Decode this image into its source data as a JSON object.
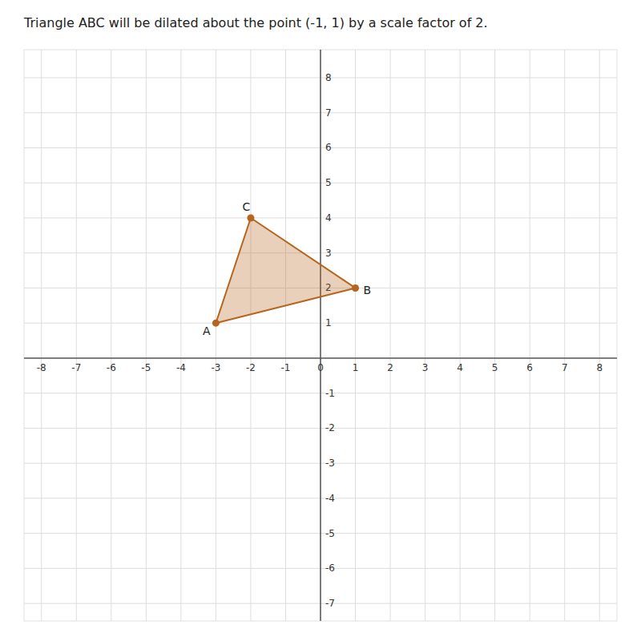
{
  "chart_data": {
    "type": "polygon",
    "title": "Triangle ABC will be dilated about the point (-1, 1) by a scale factor of 2.",
    "x": [
      -3,
      1,
      -2
    ],
    "values": [
      1,
      2,
      4
    ],
    "point_labels": [
      "A",
      "B",
      "C"
    ],
    "color": "#b5651d",
    "xlim": [
      -8.5,
      8.5
    ],
    "ylim": [
      -7.5,
      8.8
    ],
    "xticks": [
      -8,
      -7,
      -6,
      -5,
      -4,
      -3,
      -2,
      -1,
      0,
      1,
      2,
      3,
      4,
      5,
      6,
      7,
      8
    ],
    "yticks": [
      -7,
      -6,
      -5,
      -4,
      -3,
      -2,
      -1,
      1,
      2,
      3,
      4,
      5,
      6,
      7,
      8
    ],
    "grid": true
  }
}
